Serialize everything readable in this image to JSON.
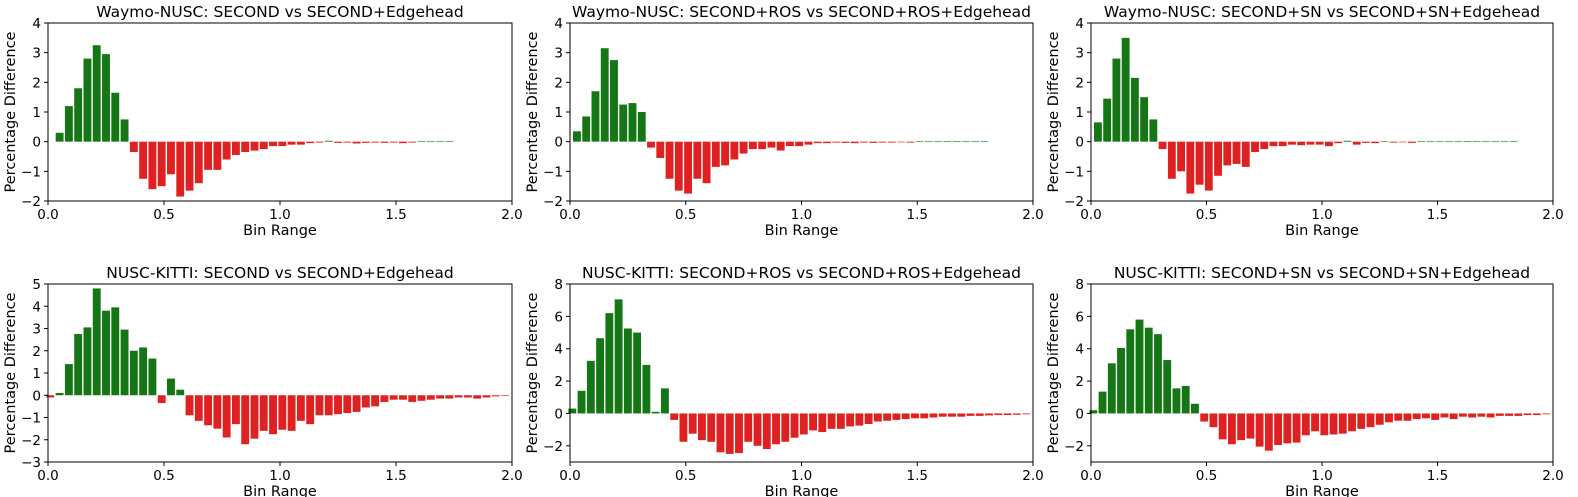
{
  "colors": {
    "positive": "#147614",
    "negative": "#e02121",
    "axis": "#000000"
  },
  "chart_data": [
    {
      "type": "bar",
      "title": "Waymo-NUSC: SECOND vs SECOND+Edgehead",
      "xlabel": "Bin Range",
      "ylabel": "Percentage Difference",
      "xlim": [
        0,
        2
      ],
      "ylim": [
        -2,
        4
      ],
      "xticks": [
        0.0,
        0.5,
        1.0,
        1.5,
        2.0
      ],
      "xtick_labels": [
        "0.0",
        "0.5",
        "1.0",
        "1.5",
        "2.0"
      ],
      "yticks": [
        -2,
        -1,
        0,
        1,
        2,
        3,
        4
      ],
      "ytick_labels": [
        "−2",
        "−1",
        "0",
        "1",
        "2",
        "3",
        "4"
      ],
      "bin_width": 0.04,
      "x": [
        0.05,
        0.09,
        0.13,
        0.17,
        0.21,
        0.25,
        0.29,
        0.33,
        0.37,
        0.41,
        0.45,
        0.49,
        0.53,
        0.57,
        0.61,
        0.65,
        0.69,
        0.73,
        0.77,
        0.81,
        0.85,
        0.89,
        0.93,
        0.97,
        1.01,
        1.05,
        1.09,
        1.13,
        1.17,
        1.21,
        1.25,
        1.29,
        1.33,
        1.37,
        1.41,
        1.45,
        1.49,
        1.53,
        1.57,
        1.61,
        1.65,
        1.69,
        1.73
      ],
      "values": [
        0.3,
        1.2,
        1.8,
        2.8,
        3.25,
        2.95,
        1.65,
        0.75,
        -0.35,
        -1.25,
        -1.6,
        -1.5,
        -1.1,
        -1.85,
        -1.65,
        -1.4,
        -0.95,
        -0.95,
        -0.6,
        -0.45,
        -0.35,
        -0.3,
        -0.25,
        -0.15,
        -0.15,
        -0.1,
        -0.1,
        -0.05,
        -0.03,
        0.03,
        -0.04,
        -0.03,
        -0.06,
        -0.04,
        -0.03,
        -0.04,
        -0.03,
        -0.05,
        -0.03,
        0.02,
        0.02,
        0.02,
        0.02
      ]
    },
    {
      "type": "bar",
      "title": "Waymo-NUSC: SECOND+ROS vs SECOND+ROS+Edgehead",
      "xlabel": "Bin Range",
      "ylabel": "Percentage Difference",
      "xlim": [
        0,
        2
      ],
      "ylim": [
        -2,
        4
      ],
      "xticks": [
        0.0,
        0.5,
        1.0,
        1.5,
        2.0
      ],
      "xtick_labels": [
        "0.0",
        "0.5",
        "1.0",
        "1.5",
        "2.0"
      ],
      "yticks": [
        -2,
        -1,
        0,
        1,
        2,
        3,
        4
      ],
      "ytick_labels": [
        "−2",
        "−1",
        "0",
        "1",
        "2",
        "3",
        "4"
      ],
      "bin_width": 0.04,
      "x": [
        0.03,
        0.07,
        0.11,
        0.15,
        0.19,
        0.23,
        0.27,
        0.31,
        0.35,
        0.39,
        0.43,
        0.47,
        0.51,
        0.55,
        0.59,
        0.63,
        0.67,
        0.71,
        0.75,
        0.79,
        0.83,
        0.87,
        0.91,
        0.95,
        0.99,
        1.03,
        1.07,
        1.11,
        1.15,
        1.19,
        1.23,
        1.27,
        1.31,
        1.35,
        1.39,
        1.43,
        1.47,
        1.51,
        1.55,
        1.59,
        1.63,
        1.67,
        1.71,
        1.75,
        1.79
      ],
      "values": [
        0.35,
        0.85,
        1.7,
        3.15,
        2.75,
        1.25,
        1.3,
        1.0,
        -0.2,
        -0.55,
        -1.25,
        -1.65,
        -1.75,
        -1.25,
        -1.4,
        -0.85,
        -0.8,
        -0.6,
        -0.4,
        -0.25,
        -0.25,
        -0.2,
        -0.3,
        -0.15,
        -0.15,
        -0.1,
        -0.05,
        -0.05,
        -0.03,
        -0.04,
        -0.05,
        -0.03,
        -0.04,
        -0.03,
        -0.03,
        -0.02,
        -0.03,
        0.02,
        0.02,
        0.02,
        0.02,
        0.02,
        0.02,
        0.02,
        0.02
      ]
    },
    {
      "type": "bar",
      "title": "Waymo-NUSC: SECOND+SN vs SECOND+SN+Edgehead",
      "xlabel": "Bin Range",
      "ylabel": "Percentage Difference",
      "xlim": [
        0,
        2
      ],
      "ylim": [
        -2,
        4
      ],
      "xticks": [
        0.0,
        0.5,
        1.0,
        1.5,
        2.0
      ],
      "xtick_labels": [
        "0.0",
        "0.5",
        "1.0",
        "1.5",
        "2.0"
      ],
      "yticks": [
        -2,
        -1,
        0,
        1,
        2,
        3,
        4
      ],
      "ytick_labels": [
        "−2",
        "−1",
        "0",
        "1",
        "2",
        "3",
        "4"
      ],
      "bin_width": 0.04,
      "x": [
        0.03,
        0.07,
        0.11,
        0.15,
        0.19,
        0.23,
        0.27,
        0.31,
        0.35,
        0.39,
        0.43,
        0.47,
        0.51,
        0.55,
        0.59,
        0.63,
        0.67,
        0.71,
        0.75,
        0.79,
        0.83,
        0.87,
        0.91,
        0.95,
        0.99,
        1.03,
        1.07,
        1.11,
        1.15,
        1.19,
        1.23,
        1.27,
        1.31,
        1.35,
        1.39,
        1.43,
        1.47,
        1.51,
        1.55,
        1.59,
        1.63,
        1.67,
        1.71,
        1.75,
        1.79,
        1.83
      ],
      "values": [
        0.65,
        1.45,
        2.8,
        3.5,
        2.15,
        1.5,
        0.75,
        -0.25,
        -1.25,
        -1.0,
        -1.75,
        -1.45,
        -1.65,
        -1.15,
        -0.8,
        -0.75,
        -0.85,
        -0.35,
        -0.25,
        -0.15,
        -0.15,
        -0.1,
        -0.12,
        -0.1,
        -0.1,
        -0.15,
        -0.05,
        0.03,
        -0.1,
        -0.04,
        -0.05,
        0.02,
        -0.03,
        -0.02,
        -0.04,
        0.02,
        0.02,
        0.02,
        0.02,
        0.02,
        0.02,
        0.02,
        0.02,
        0.02,
        0.02,
        0.02
      ]
    },
    {
      "type": "bar",
      "title": "NUSC-KITTI: SECOND vs SECOND+Edgehead",
      "xlabel": "Bin Range",
      "ylabel": "Percentage Difference",
      "xlim": [
        0,
        2
      ],
      "ylim": [
        -3,
        5
      ],
      "xticks": [
        0.0,
        0.5,
        1.0,
        1.5,
        2.0
      ],
      "xtick_labels": [
        "0.0",
        "0.5",
        "1.0",
        "1.5",
        "2.0"
      ],
      "yticks": [
        -3,
        -2,
        -1,
        0,
        1,
        2,
        3,
        4,
        5
      ],
      "ytick_labels": [
        "−3",
        "−2",
        "−1",
        "0",
        "1",
        "2",
        "3",
        "4",
        "5"
      ],
      "bin_width": 0.04,
      "x": [
        0.01,
        0.05,
        0.09,
        0.13,
        0.17,
        0.21,
        0.25,
        0.29,
        0.33,
        0.37,
        0.41,
        0.45,
        0.49,
        0.53,
        0.57,
        0.61,
        0.65,
        0.69,
        0.73,
        0.77,
        0.81,
        0.85,
        0.89,
        0.93,
        0.97,
        1.01,
        1.05,
        1.09,
        1.13,
        1.17,
        1.21,
        1.25,
        1.29,
        1.33,
        1.37,
        1.41,
        1.45,
        1.49,
        1.53,
        1.57,
        1.61,
        1.65,
        1.69,
        1.73,
        1.77,
        1.81,
        1.85,
        1.89,
        1.93,
        1.97
      ],
      "values": [
        -0.1,
        0.1,
        1.4,
        2.75,
        3.05,
        4.8,
        3.8,
        3.95,
        2.95,
        2.0,
        2.15,
        1.65,
        -0.35,
        0.75,
        0.25,
        -0.9,
        -1.15,
        -1.35,
        -1.5,
        -1.9,
        -1.3,
        -2.2,
        -1.95,
        -1.6,
        -1.75,
        -1.55,
        -1.6,
        -1.15,
        -1.3,
        -0.9,
        -0.9,
        -0.85,
        -0.8,
        -0.75,
        -0.55,
        -0.5,
        -0.3,
        -0.2,
        -0.2,
        -0.3,
        -0.25,
        -0.2,
        -0.15,
        -0.15,
        -0.1,
        -0.1,
        -0.15,
        -0.1,
        -0.05,
        -0.03
      ]
    },
    {
      "type": "bar",
      "title": "NUSC-KITTI: SECOND+ROS vs SECOND+ROS+Edgehead",
      "xlabel": "Bin Range",
      "ylabel": "Percentage Difference",
      "xlim": [
        0,
        2
      ],
      "ylim": [
        -3,
        8
      ],
      "xticks": [
        0.0,
        0.5,
        1.0,
        1.5,
        2.0
      ],
      "xtick_labels": [
        "0.0",
        "0.5",
        "1.0",
        "1.5",
        "2.0"
      ],
      "yticks": [
        -2,
        0,
        2,
        4,
        6,
        8
      ],
      "ytick_labels": [
        "−2",
        "0",
        "2",
        "4",
        "6",
        "8"
      ],
      "bin_width": 0.04,
      "x": [
        0.01,
        0.05,
        0.09,
        0.13,
        0.17,
        0.21,
        0.25,
        0.29,
        0.33,
        0.37,
        0.41,
        0.45,
        0.49,
        0.53,
        0.57,
        0.61,
        0.65,
        0.69,
        0.73,
        0.77,
        0.81,
        0.85,
        0.89,
        0.93,
        0.97,
        1.01,
        1.05,
        1.09,
        1.13,
        1.17,
        1.21,
        1.25,
        1.29,
        1.33,
        1.37,
        1.41,
        1.45,
        1.49,
        1.53,
        1.57,
        1.61,
        1.65,
        1.69,
        1.73,
        1.77,
        1.81,
        1.85,
        1.89,
        1.93,
        1.97
      ],
      "values": [
        0.3,
        1.4,
        3.25,
        4.65,
        6.2,
        7.05,
        5.25,
        5.0,
        3.0,
        0.1,
        1.55,
        -0.4,
        -1.75,
        -1.25,
        -1.65,
        -1.75,
        -2.4,
        -2.5,
        -2.45,
        -1.75,
        -2.0,
        -2.2,
        -1.9,
        -1.75,
        -1.5,
        -1.3,
        -1.05,
        -1.15,
        -0.95,
        -0.95,
        -0.8,
        -0.75,
        -0.65,
        -0.5,
        -0.45,
        -0.4,
        -0.35,
        -0.3,
        -0.3,
        -0.25,
        -0.2,
        -0.2,
        -0.2,
        -0.15,
        -0.15,
        -0.12,
        -0.1,
        -0.1,
        -0.08,
        -0.05
      ]
    },
    {
      "type": "bar",
      "title": "NUSC-KITTI: SECOND+SN vs SECOND+SN+Edgehead",
      "xlabel": "Bin Range",
      "ylabel": "Percentage Difference",
      "xlim": [
        0,
        2
      ],
      "ylim": [
        -3,
        8
      ],
      "xticks": [
        0.0,
        0.5,
        1.0,
        1.5,
        2.0
      ],
      "xtick_labels": [
        "0.0",
        "0.5",
        "1.0",
        "1.5",
        "2.0"
      ],
      "yticks": [
        -2,
        0,
        2,
        4,
        6,
        8
      ],
      "ytick_labels": [
        "−2",
        "0",
        "2",
        "4",
        "6",
        "8"
      ],
      "bin_width": 0.04,
      "x": [
        0.01,
        0.05,
        0.09,
        0.13,
        0.17,
        0.21,
        0.25,
        0.29,
        0.33,
        0.37,
        0.41,
        0.45,
        0.49,
        0.53,
        0.57,
        0.61,
        0.65,
        0.69,
        0.73,
        0.77,
        0.81,
        0.85,
        0.89,
        0.93,
        0.97,
        1.01,
        1.05,
        1.09,
        1.13,
        1.17,
        1.21,
        1.25,
        1.29,
        1.33,
        1.37,
        1.41,
        1.45,
        1.49,
        1.53,
        1.57,
        1.61,
        1.65,
        1.69,
        1.73,
        1.77,
        1.81,
        1.85,
        1.89,
        1.93,
        1.97
      ],
      "values": [
        0.2,
        1.35,
        3.1,
        4.05,
        5.2,
        5.8,
        5.3,
        4.9,
        3.3,
        1.55,
        1.7,
        0.6,
        -0.5,
        -0.85,
        -1.6,
        -1.9,
        -1.65,
        -1.55,
        -2.05,
        -2.3,
        -1.95,
        -1.85,
        -1.8,
        -1.35,
        -1.1,
        -1.35,
        -1.3,
        -1.25,
        -1.1,
        -0.95,
        -0.85,
        -0.7,
        -0.55,
        -0.45,
        -0.45,
        -0.35,
        -0.3,
        -0.4,
        -0.25,
        -0.35,
        -0.2,
        -0.25,
        -0.2,
        -0.25,
        -0.15,
        -0.15,
        -0.15,
        -0.1,
        -0.1,
        -0.05
      ]
    }
  ]
}
